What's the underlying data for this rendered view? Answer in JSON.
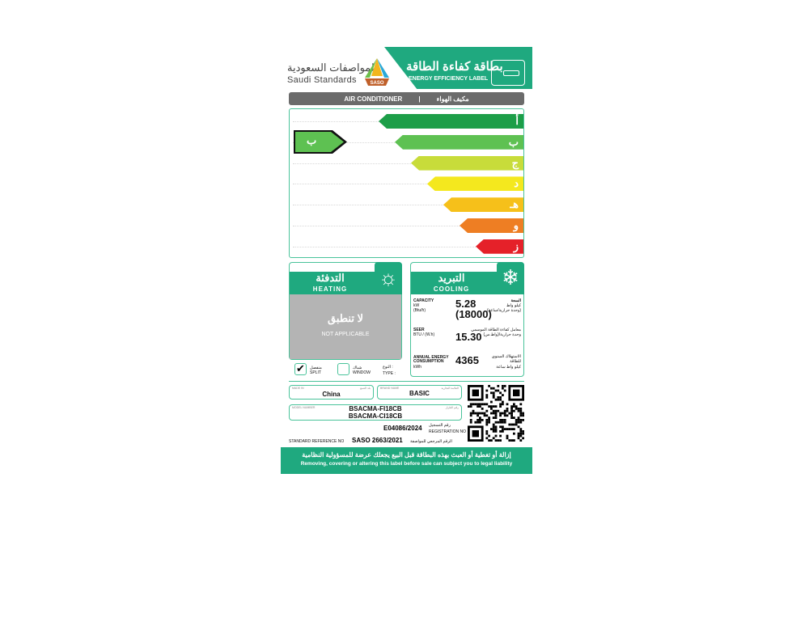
{
  "header": {
    "org_ar": "المواصفات السعودية",
    "org_en": "Saudi Standards",
    "logo_text": "SASO",
    "title_ar": "بطاقة كفاءة الطاقة",
    "title_en": "ENERGY EFFICIENCY LABEL"
  },
  "product": {
    "en": "AIR CONDITIONER",
    "sep": "|",
    "ar": "مكيف الهواء"
  },
  "scale": {
    "classes": [
      {
        "label": "أ",
        "color": "#1c9e48"
      },
      {
        "label": "ب",
        "color": "#5ec152"
      },
      {
        "label": "ج",
        "color": "#c8dc3a"
      },
      {
        "label": "د",
        "color": "#f4e81e"
      },
      {
        "label": "هـ",
        "color": "#f6c01a"
      },
      {
        "label": "و",
        "color": "#ee7e23"
      },
      {
        "label": "ز",
        "color": "#e52129"
      }
    ],
    "rating": "ب"
  },
  "heating": {
    "title_ar": "التدفئة",
    "title_en": "HEATING",
    "na_ar": "لا تنطبق",
    "na_en": "NOT APPLICABLE"
  },
  "cooling": {
    "title_ar": "التبريد",
    "title_en": "COOLING",
    "capacity": {
      "label_en": "CAPACITY",
      "unit1": "kW",
      "unit2": "(Btu/h)",
      "label_ar": "السعة",
      "unit_ar1": "كيلو واط",
      "unit_ar2": "(وحدة حرارية/ساعة)",
      "value_kw": "5.28",
      "value_btu": "(18000)"
    },
    "seer": {
      "label_en": "SEER",
      "unit": "BTU / (W.h)",
      "label_ar": "معامل كفاءة الطاقة الموسمي",
      "unit_ar": "وحدة حرارية/(واط.س)",
      "value": "15.30"
    },
    "annual": {
      "label_en1": "ANNUAL ENERGY",
      "label_en2": "CONSUMPTION",
      "unit": "kWh",
      "label_ar1": "الاستهلاك السنوي",
      "label_ar2": "للطاقة",
      "unit_ar": "كيلو واط ساعة",
      "value": "4365"
    }
  },
  "type": {
    "split_ar": "منفصل",
    "split_en": "SPLIT",
    "split_checked": true,
    "window_ar": "شباك",
    "window_en": "WINDOW",
    "window_checked": false,
    "type_ar": "النوع :",
    "type_en": "TYPE :"
  },
  "info": {
    "made_in_label": "MADE IN",
    "made_in_ar": "بلد الصنع",
    "made_in": "China",
    "brand_label": "BRAND NAME",
    "brand_ar": "العلامة التجارية",
    "brand": "BASIC",
    "model_label": "MODEL NUMBER",
    "model_ar": "رقم الطراز",
    "model1": "BSACMA-FI18CB",
    "model2": "BSACMA-CI18CB",
    "reg_value": "E04086/2024",
    "reg_ar": "رقم التسجيل",
    "reg_en": "REGISTRATION NO",
    "std_en": "STANDARD REFERENCE NO",
    "std_value": "SASO 2663/2021",
    "std_ar": "الرقم المرجعي للمواصفة"
  },
  "footer": {
    "ar": "إزالة أو تغطية أو العبث بهذه البطاقة قبل البيع يجعلك عرضة للمسؤولية النظامية",
    "en": "Removing, covering or altering this label before sale can subject you to legal liability"
  }
}
